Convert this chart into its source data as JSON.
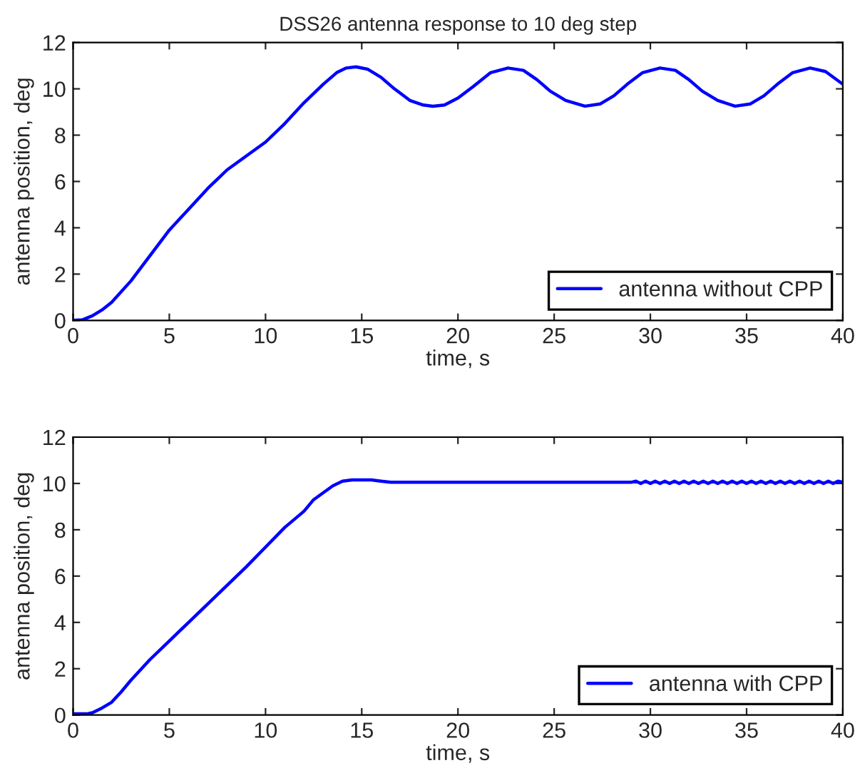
{
  "chart_data": [
    {
      "type": "line",
      "title": "DSS26 antenna response to 10 deg step",
      "xlabel": "time, s",
      "ylabel": "antenna position, deg",
      "xlim": [
        0,
        40
      ],
      "ylim": [
        0,
        12
      ],
      "xticks": [
        0,
        5,
        10,
        15,
        20,
        25,
        30,
        35,
        40
      ],
      "yticks": [
        0,
        2,
        4,
        6,
        8,
        10,
        12
      ],
      "legend": "bottom right",
      "grid": false,
      "series": [
        {
          "name": "antenna without CPP",
          "color": "#0000ff",
          "x": [
            0,
            0.5,
            1,
            1.5,
            2,
            3,
            4,
            5,
            6,
            7,
            8,
            9,
            10,
            11,
            12,
            13,
            13.7,
            14.2,
            14.7,
            15.3,
            16,
            16.7,
            17.5,
            18.2,
            18.7,
            19.3,
            20,
            20.8,
            21.7,
            22.6,
            23.4,
            24.1,
            24.8,
            25.6,
            26.6,
            27.4,
            28.1,
            28.8,
            29.6,
            30.5,
            31.3,
            32,
            32.7,
            33.5,
            34.4,
            35.2,
            35.9,
            36.6,
            37.4,
            38.3,
            39.1,
            40
          ],
          "values": [
            0,
            0.03,
            0.2,
            0.45,
            0.78,
            1.7,
            2.8,
            3.9,
            4.8,
            5.7,
            6.5,
            7.1,
            7.7,
            8.5,
            9.4,
            10.2,
            10.7,
            10.9,
            10.95,
            10.85,
            10.5,
            10,
            9.5,
            9.3,
            9.25,
            9.3,
            9.6,
            10.1,
            10.7,
            10.9,
            10.8,
            10.4,
            9.9,
            9.5,
            9.25,
            9.35,
            9.7,
            10.2,
            10.7,
            10.9,
            10.8,
            10.4,
            9.9,
            9.5,
            9.25,
            9.35,
            9.7,
            10.2,
            10.7,
            10.9,
            10.75,
            10.2
          ]
        }
      ]
    },
    {
      "type": "line",
      "xlabel": "time, s",
      "ylabel": "antenna position, deg",
      "xlim": [
        0,
        40
      ],
      "ylim": [
        0,
        12
      ],
      "xticks": [
        0,
        5,
        10,
        15,
        20,
        25,
        30,
        35,
        40
      ],
      "yticks": [
        0,
        2,
        4,
        6,
        8,
        10,
        12
      ],
      "legend": "bottom right",
      "grid": false,
      "series": [
        {
          "name": "antenna with CPP",
          "color": "#0000ff",
          "x": [
            0,
            0.7,
            1,
            1.5,
            2,
            2.5,
            3,
            4,
            5,
            6,
            7,
            8,
            9,
            10,
            11,
            12,
            12.5,
            13,
            13.5,
            14,
            14.5,
            15.5,
            16,
            16.5,
            20,
            25,
            29,
            29.25,
            29.5,
            29.75,
            30,
            30.25,
            30.5,
            30.75,
            31,
            31.25,
            31.5,
            31.75,
            32,
            32.25,
            32.5,
            32.75,
            33,
            33.25,
            33.5,
            33.75,
            34,
            34.25,
            34.5,
            34.75,
            35,
            35.25,
            35.5,
            35.75,
            36,
            36.25,
            36.5,
            36.75,
            37,
            37.25,
            37.5,
            37.75,
            38,
            38.25,
            38.5,
            38.75,
            39,
            39.25,
            39.5,
            39.75,
            40
          ],
          "values": [
            0.05,
            0.05,
            0.1,
            0.3,
            0.55,
            1,
            1.5,
            2.4,
            3.2,
            4,
            4.8,
            5.6,
            6.4,
            7.25,
            8.1,
            8.8,
            9.3,
            9.6,
            9.9,
            10.1,
            10.15,
            10.15,
            10.1,
            10.05,
            10.05,
            10.05,
            10.05,
            10.1,
            10.0,
            10.1,
            10.0,
            10.1,
            10.0,
            10.1,
            10.0,
            10.1,
            10.0,
            10.1,
            10.0,
            10.1,
            10.0,
            10.1,
            10.0,
            10.1,
            10.0,
            10.1,
            10.0,
            10.1,
            10.0,
            10.1,
            10.0,
            10.1,
            10.0,
            10.1,
            10.0,
            10.1,
            10.0,
            10.1,
            10.0,
            10.1,
            10.0,
            10.1,
            10.0,
            10.1,
            10.0,
            10.1,
            10.0,
            10.1,
            10.0,
            10.1,
            10.05
          ]
        }
      ]
    }
  ]
}
